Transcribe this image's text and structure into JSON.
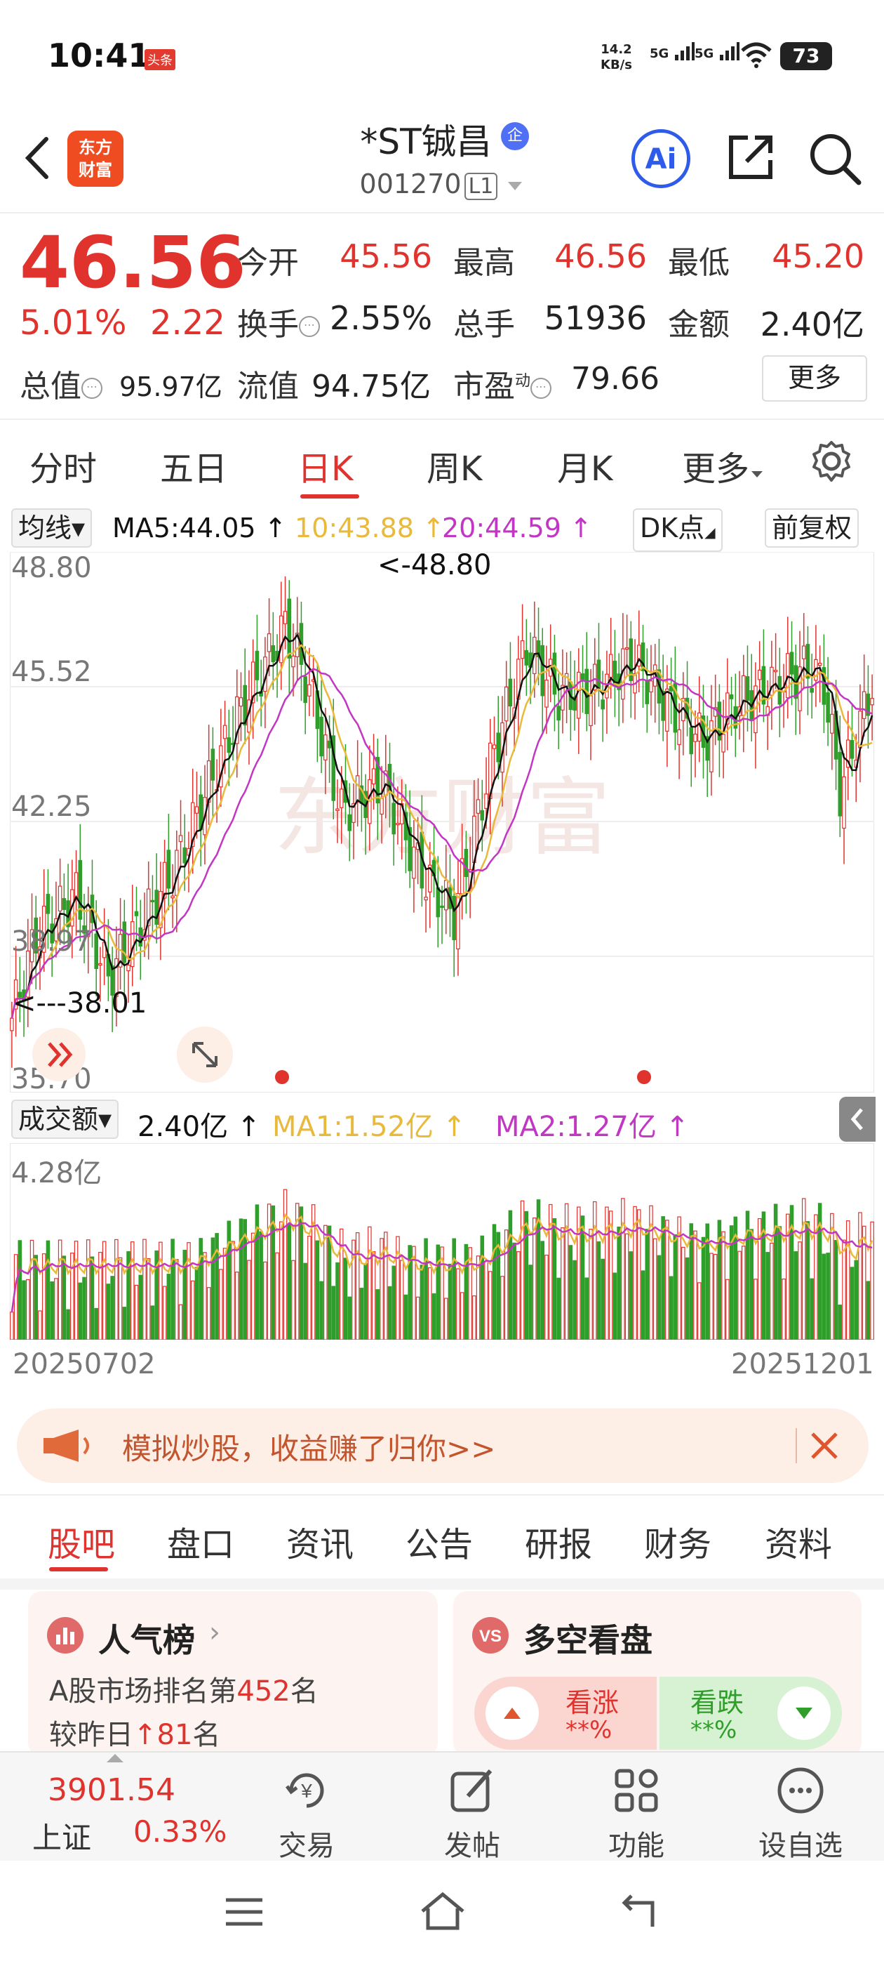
{
  "status": {
    "time": "10:41",
    "news_badge": "头条",
    "net_speed": "14.2",
    "net_unit": "KB/s",
    "signal1": "5G",
    "signal2": "5G",
    "battery": "73"
  },
  "header": {
    "logo_line1": "东方",
    "logo_line2": "财富",
    "title": "*ST铖昌",
    "title_badge": "企",
    "code": "001270",
    "code_badge": "L1",
    "ai_label": "Ai"
  },
  "quote": {
    "price": "46.56",
    "change_pct": "5.01%",
    "change": "2.22",
    "open_label": "今开",
    "open": "45.56",
    "high_label": "最高",
    "high": "46.56",
    "low_label": "最低",
    "low": "45.20",
    "turnover_label": "换手",
    "turnover": "2.55%",
    "volume_label": "总手",
    "volume": "51936",
    "amount_label": "金额",
    "amount": "2.40亿",
    "mktcap_label": "总值",
    "mktcap": "95.97亿",
    "float_label": "流值",
    "float_cap": "94.75亿",
    "pe_label": "市盈",
    "pe_sup": "动",
    "pe": "79.66",
    "more_label": "更多"
  },
  "period_tabs": [
    "分时",
    "五日",
    "日K",
    "周K",
    "月K",
    "更多"
  ],
  "ma_bar": {
    "ma_select": "均线",
    "ma5": "MA5:44.05 ↑",
    "ma10": "10:43.88 ↑",
    "ma20": "20:44.59 ↑",
    "dk": "DK点",
    "adjust": "前复权"
  },
  "kline": {
    "y_labels": [
      "48.80",
      "45.52",
      "42.25",
      "38.97",
      "35.70"
    ],
    "high_annot": "<-48.80",
    "low_annot": "<---38.01",
    "watermark": "东方财富"
  },
  "volume": {
    "select": "成交额",
    "value": "2.40亿 ↑",
    "ma1": "MA1:1.52亿 ↑",
    "ma2": "MA2:1.27亿 ↑",
    "y_max": "4.28亿",
    "date_start": "20250702",
    "date_end": "20251201"
  },
  "banner": {
    "text": "模拟炒股，收益赚了归你>>"
  },
  "content_tabs": [
    "股吧",
    "盘口",
    "资讯",
    "公告",
    "研报",
    "财务",
    "资料"
  ],
  "popularity": {
    "title": "人气榜",
    "rank_prefix": "A股市场排名第",
    "rank": "452",
    "rank_suffix": "名",
    "delta_prefix": "较昨日",
    "delta": "81",
    "delta_suffix": "名"
  },
  "bullbear": {
    "title": "多空看盘",
    "up_label": "看涨",
    "up_value": "**%",
    "down_label": "看跌",
    "down_value": "**%"
  },
  "bottom": {
    "index_value": "3901.54",
    "index_name": "上证",
    "index_change": "0.33%",
    "trade": "交易",
    "post": "发帖",
    "func": "功能",
    "watchlist": "设自选"
  },
  "colors": {
    "up": "#e0332e",
    "down": "#2f9e2a",
    "ma5": "#111111",
    "ma10": "#e8b93a",
    "ma20": "#c236c4"
  }
}
